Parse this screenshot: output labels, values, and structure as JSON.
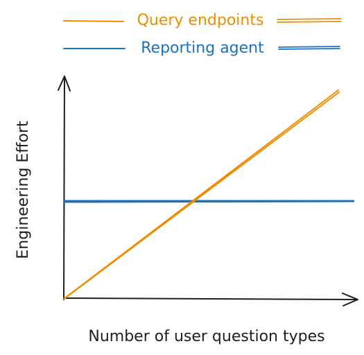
{
  "chart_data": {
    "type": "line",
    "title": "",
    "xlabel": "Number of user question types",
    "ylabel": "Engineering Effort",
    "xlim": [
      0,
      1
    ],
    "ylim": [
      0,
      1
    ],
    "grid": false,
    "legend_position": "top-center",
    "series": [
      {
        "name": "Query endpoints",
        "color": "#f08c00",
        "x": [
          0,
          1
        ],
        "y": [
          0,
          1
        ]
      },
      {
        "name": "Reporting agent",
        "color": "#1971c2",
        "x": [
          0,
          1
        ],
        "y": [
          0.47,
          0.47
        ]
      }
    ]
  }
}
